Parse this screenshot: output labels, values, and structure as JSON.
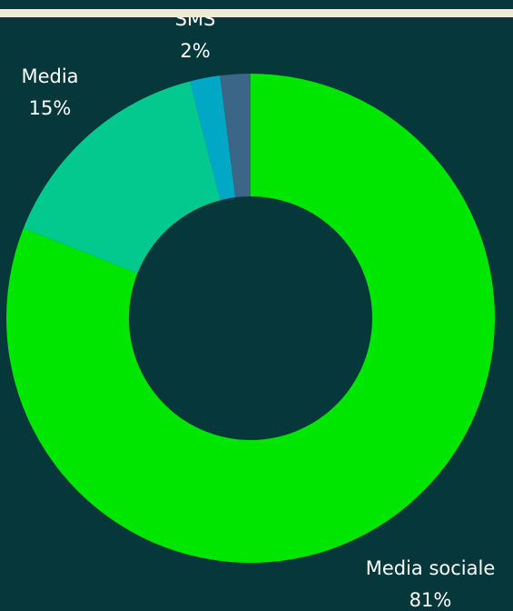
{
  "chart_data": {
    "type": "pie",
    "categories": [
      "Media sociale",
      "Media",
      "SMS",
      null
    ],
    "values": [
      81,
      15,
      2,
      2
    ],
    "value_labels": [
      "81%",
      "15%",
      "2%",
      null
    ],
    "colors": [
      "#00e600",
      "#03c98f",
      "#00a8c6",
      "#3b6688"
    ],
    "donut": true
  }
}
